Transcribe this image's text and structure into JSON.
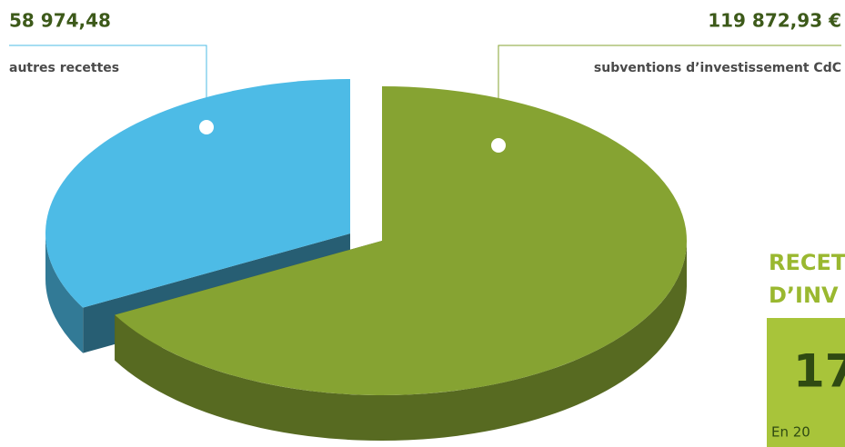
{
  "chart_data": {
    "type": "pie",
    "categories": [
      "autres recettes",
      "subventions d’investissement CdC"
    ],
    "values": [
      58974.48,
      119872.93
    ],
    "value_labels": [
      "58 974,48",
      "119 872,93 €"
    ],
    "colors": [
      "#4dbbe6",
      "#86a332"
    ]
  },
  "side_panel": {
    "title_lines": [
      "RECET",
      "D’INV"
    ],
    "amount": "17",
    "note": "En 20"
  }
}
